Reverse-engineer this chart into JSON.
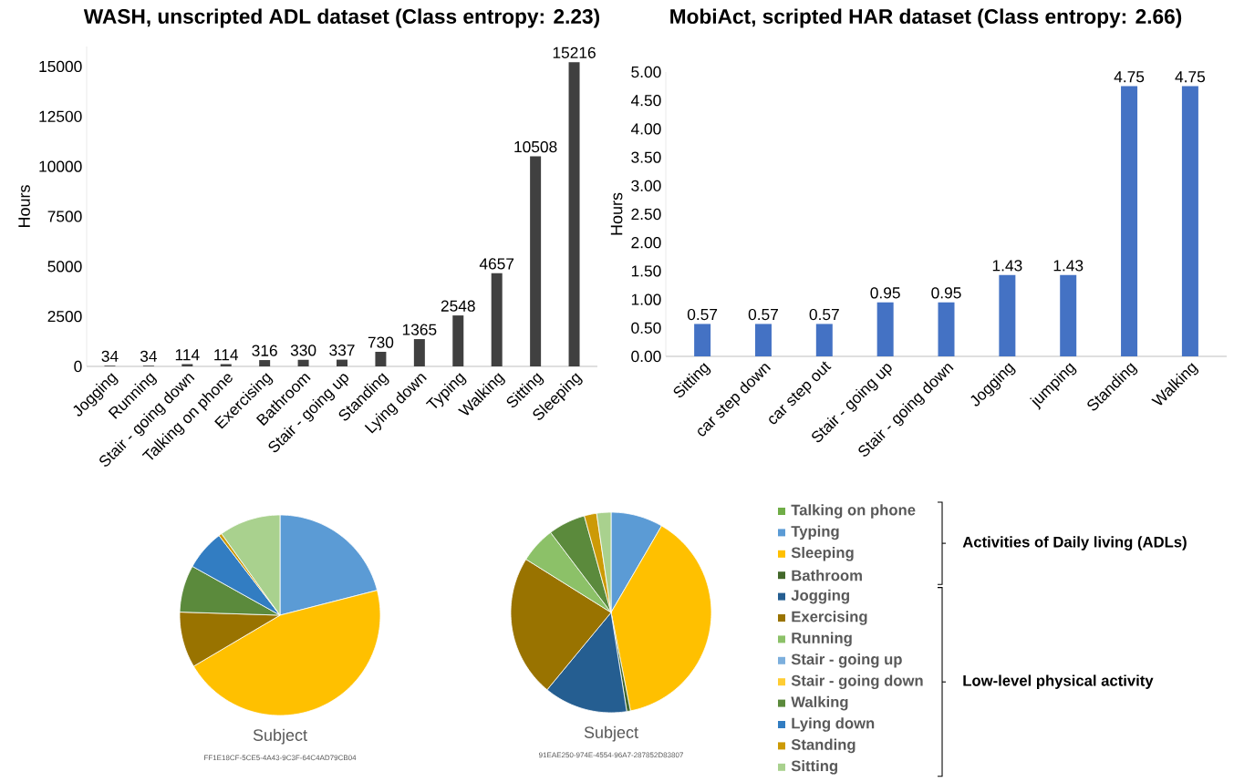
{
  "chart_data": [
    {
      "type": "bar",
      "title": "WASH, unscripted ADL dataset (Class entropy: 2.23)",
      "ylabel": "Hours",
      "categories": [
        "Jogging",
        "Running",
        "Stair - going down",
        "Talking on phone",
        "Exercising",
        "Bathroom",
        "Stair - going up",
        "Standing",
        "Lying down",
        "Typing",
        "Walking",
        "Sitting",
        "Sleeping"
      ],
      "values": [
        34,
        34,
        114,
        114,
        316,
        330,
        337,
        730,
        1365,
        2548,
        4657,
        10508,
        15216
      ],
      "color": "#404040",
      "ylim": [
        0,
        16000
      ],
      "yticks": [
        0,
        2500,
        5000,
        7500,
        10000,
        12500,
        15000
      ],
      "data_labels": true
    },
    {
      "type": "bar",
      "title": "MobiAct, scripted HAR dataset (Class entropy: 2.66)",
      "ylabel": "Hours",
      "categories": [
        "Sitting",
        "car step down",
        "car step out",
        "Stair - going up",
        "Stair - going down",
        "Jogging",
        "jumping",
        "Standing",
        "Walking"
      ],
      "values": [
        0.57,
        0.57,
        0.57,
        0.95,
        0.95,
        1.43,
        1.43,
        4.75,
        4.75
      ],
      "color": "#4472c4",
      "ylim": [
        0,
        5
      ],
      "yticks": [
        {
          "value": 0,
          "label": "0.00"
        },
        {
          "value": 0.5,
          "label": "0.50"
        },
        {
          "value": 1,
          "label": "1.00"
        },
        {
          "value": 1.5,
          "label": "1.50"
        },
        {
          "value": 2,
          "label": "2.00"
        },
        {
          "value": 2.5,
          "label": "2.50"
        },
        {
          "value": 3,
          "label": "3.00"
        },
        {
          "value": 3.5,
          "label": "3.50"
        },
        {
          "value": 4,
          "label": "4.00"
        },
        {
          "value": 4.5,
          "label": "4.50"
        },
        {
          "value": 5,
          "label": "5.00"
        }
      ],
      "data_labels": true
    },
    {
      "type": "pie",
      "title": "Subject",
      "subtitle": "FF1E18CF-5CE5-4A43-9C3F-64C4AD79CB04",
      "values": [
        0,
        21,
        45.5,
        0,
        0,
        9,
        0,
        0,
        0,
        7.6,
        6.5,
        0.5,
        9.9
      ],
      "colors": [
        "#70ad47",
        "#5b9bd5",
        "#ffc000",
        "#43682b",
        "#255e91",
        "#997300",
        "#8cc168",
        "#7cafdd",
        "#ffcd33",
        "#5b8a3c",
        "#327dc2",
        "#cc9a06",
        "#a9d18e"
      ]
    },
    {
      "type": "pie",
      "title": "Subject",
      "subtitle": "91EAE250-974E-4554-96A7-287852D83807",
      "categories": [
        "Talking on phone",
        "Typing",
        "Sleeping",
        "Bathroom",
        "Jogging",
        "Exercising",
        "Running",
        "Stair - going up",
        "Stair - going down",
        "Walking",
        "Lying down",
        "Standing",
        "Sitting"
      ],
      "values": [
        0,
        8.4,
        38.5,
        0.6,
        13.5,
        22.9,
        5.8,
        0,
        0,
        6,
        0,
        2,
        2.3
      ],
      "colors": [
        "#70ad47",
        "#5b9bd5",
        "#ffc000",
        "#43682b",
        "#255e91",
        "#997300",
        "#8cc168",
        "#7cafdd",
        "#ffcd33",
        "#5b8a3c",
        "#327dc2",
        "#cc9a06",
        "#a9d18e"
      ],
      "legend": "right",
      "annotations": [
        "Activities of Daily living (ADLs)",
        "Low-level physical activity"
      ]
    }
  ]
}
